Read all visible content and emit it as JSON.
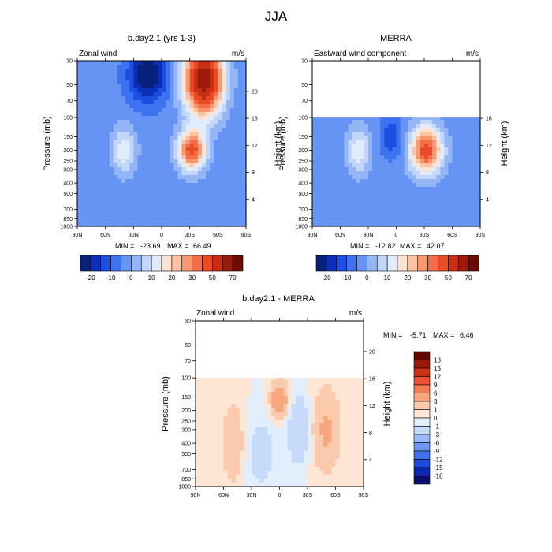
{
  "figure_title": "JJA",
  "colors": {
    "wind_scale": [
      "#08217a",
      "#0a30b8",
      "#1c4fe0",
      "#3d72f0",
      "#6694f5",
      "#94b6f7",
      "#c2d6fa",
      "#e0ebfc",
      "#fde3d2",
      "#fbc2a4",
      "#f7986f",
      "#f36e48",
      "#ea4a26",
      "#c82e14",
      "#9b1a0a",
      "#6e0c03"
    ],
    "diff_scale": [
      "#0a0f6e",
      "#0d28b0",
      "#1f49dc",
      "#4270ec",
      "#6d97f2",
      "#9ab9f6",
      "#c6dafa",
      "#e3eefc",
      "#fde6d4",
      "#fbc9ab",
      "#f7a67e",
      "#f27d52",
      "#e95330",
      "#c93416",
      "#98180a",
      "#5e0703"
    ]
  },
  "chart_data": [
    {
      "id": "model",
      "type": "heatmap",
      "title": "b.day2.1 (yrs 1-3)",
      "left_label": "Zonal wind",
      "right_label": "m/s",
      "xlabel": "",
      "ylabel": "Pressure (mb)",
      "ylabel_right": "Height (km)",
      "x_ticks": [
        "90N",
        "60N",
        "30N",
        "0",
        "30S",
        "60S",
        "90S"
      ],
      "x_range": [
        90,
        -90
      ],
      "y_ticks": [
        30,
        50,
        70,
        100,
        150,
        200,
        250,
        300,
        400,
        500,
        700,
        850,
        1000
      ],
      "y_range": [
        1000,
        30
      ],
      "y_scale": "log",
      "height_ticks": [
        4,
        8,
        12,
        16,
        20
      ],
      "data_top_mb": 30,
      "stats": {
        "min_label": "MIN =",
        "min": "-23.69",
        "max_label": "MAX =",
        "max": "66.49"
      },
      "colorbar_labels": [
        "-20",
        "-10",
        "0",
        "10",
        "20",
        "30",
        "50",
        "70"
      ],
      "contour_levels": [
        -25,
        -20,
        -15,
        -10,
        -5,
        0,
        5,
        10,
        15,
        20,
        25,
        30,
        40,
        50,
        60,
        70
      ],
      "features": [
        {
          "lat": -45,
          "p": 45,
          "value": 66,
          "width_lat": 14,
          "width_logp": 0.5
        },
        {
          "lat": -32,
          "p": 200,
          "value": 42,
          "width_lat": 10,
          "width_logp": 0.3
        },
        {
          "lat": 40,
          "p": 200,
          "value": 17,
          "width_lat": 9,
          "width_logp": 0.35
        },
        {
          "lat": 15,
          "p": 40,
          "value": -24,
          "width_lat": 14,
          "width_logp": 0.4
        }
      ]
    },
    {
      "id": "obs",
      "type": "heatmap",
      "title": "MERRA",
      "left_label": "Eastward wind component",
      "right_label": "m/s",
      "xlabel": "",
      "ylabel": "Pressure (mb)",
      "ylabel_right": "Height (km)",
      "x_ticks": [
        "90N",
        "60N",
        "30N",
        "0",
        "30S",
        "60S",
        "90S"
      ],
      "x_range": [
        90,
        -90
      ],
      "y_ticks": [
        30,
        50,
        70,
        100,
        150,
        200,
        250,
        300,
        400,
        500,
        700,
        850,
        1000
      ],
      "y_range": [
        1000,
        30
      ],
      "y_scale": "log",
      "height_ticks": [
        4,
        8,
        12,
        16
      ],
      "data_top_mb": 100,
      "stats": {
        "min_label": "MIN =",
        "min": "-12.82",
        "max_label": "MAX =",
        "max": "42.07"
      },
      "colorbar_labels": [
        "-20",
        "-10",
        "0",
        "10",
        "20",
        "30",
        "50",
        "70"
      ],
      "contour_levels": [
        -25,
        -20,
        -15,
        -10,
        -5,
        0,
        5,
        10,
        15,
        20,
        25,
        30,
        40,
        50,
        60,
        70
      ],
      "features": [
        {
          "lat": -32,
          "p": 200,
          "value": 42,
          "width_lat": 12,
          "width_logp": 0.35
        },
        {
          "lat": 40,
          "p": 200,
          "value": 17,
          "width_lat": 9,
          "width_logp": 0.35
        },
        {
          "lat": 5,
          "p": 150,
          "value": -12,
          "width_lat": 8,
          "width_logp": 0.3
        }
      ]
    },
    {
      "id": "diff",
      "type": "heatmap",
      "title": "b.day2.1 - MERRA",
      "left_label": "Zonal wind",
      "right_label": "m/s",
      "xlabel": "",
      "ylabel": "Pressure (mb)",
      "ylabel_right": "Height (km)",
      "x_ticks": [
        "90N",
        "60N",
        "30N",
        "0",
        "30S",
        "60S",
        "90S"
      ],
      "x_range": [
        90,
        -90
      ],
      "y_ticks": [
        30,
        50,
        70,
        100,
        150,
        200,
        250,
        300,
        400,
        500,
        700,
        850,
        1000
      ],
      "y_range": [
        1000,
        30
      ],
      "y_scale": "log",
      "height_ticks": [
        4,
        8,
        12,
        16,
        20
      ],
      "data_top_mb": 100,
      "stats": {
        "min_label": "MIN =",
        "min": "-5.71",
        "max_label": "MAX =",
        "max": "6.46"
      },
      "colorbar_labels": [
        "18",
        "15",
        "12",
        "9",
        "6",
        "3",
        "1",
        "0",
        "-1",
        "-3",
        "-6",
        "-9",
        "-12",
        "-15",
        "-18"
      ],
      "contour_levels": [
        -18,
        -15,
        -12,
        -9,
        -6,
        -3,
        -1,
        0,
        1,
        3,
        6,
        9,
        12,
        15,
        18
      ],
      "features": [
        {
          "lat": 0,
          "p": 160,
          "value": 6.4,
          "width_lat": 6,
          "width_logp": 0.25
        },
        {
          "lat": -50,
          "p": 300,
          "value": 3.5,
          "width_lat": 10,
          "width_logp": 0.6
        },
        {
          "lat": 50,
          "p": 400,
          "value": 2.5,
          "width_lat": 8,
          "width_logp": 0.6
        },
        {
          "lat": -20,
          "p": 300,
          "value": -3,
          "width_lat": 8,
          "width_logp": 0.5
        },
        {
          "lat": 20,
          "p": 500,
          "value": -2,
          "width_lat": 10,
          "width_logp": 0.5
        }
      ]
    }
  ]
}
